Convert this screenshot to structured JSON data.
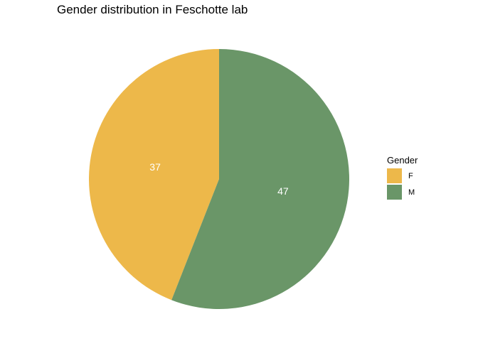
{
  "chart_data": {
    "type": "pie",
    "title": "Gender distribution in Feschotte lab",
    "legend": {
      "title": "Gender",
      "placement": "right"
    },
    "categories": [
      "F",
      "M"
    ],
    "values": [
      37,
      47
    ],
    "colors": [
      "#EDB84A",
      "#6A9668"
    ],
    "label_color": "#ffffff",
    "start": "top",
    "direction": "counterclockwise"
  }
}
